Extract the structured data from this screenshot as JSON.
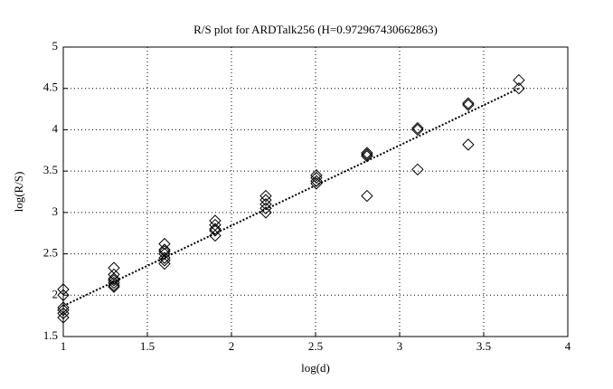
{
  "chart_data": {
    "type": "scatter",
    "title": "R/S plot for ARDTalk256 (H=0.972967430662863)",
    "x_label": "log(d)",
    "y_label": "log(R/S)",
    "xlim": [
      1,
      4
    ],
    "ylim": [
      1.5,
      5
    ],
    "xticks": [
      1,
      1.5,
      2,
      2.5,
      3,
      3.5,
      4
    ],
    "yticks": [
      1.5,
      2,
      2.5,
      3,
      3.5,
      4,
      4.5,
      5
    ],
    "grid": true,
    "series": [
      {
        "type": "scatter",
        "marker": "diamond",
        "color": "#000000",
        "x": [
          1,
          1,
          1,
          1,
          1,
          1,
          1.301,
          1.301,
          1.301,
          1.301,
          1.301,
          1.301,
          1.301,
          1.602,
          1.602,
          1.602,
          1.602,
          1.602,
          1.602,
          1.602,
          1.903,
          1.903,
          1.903,
          1.903,
          1.903,
          2.204,
          2.204,
          2.204,
          2.204,
          2.204,
          2.505,
          2.505,
          2.505,
          2.505,
          2.806,
          2.806,
          2.806,
          2.806,
          3.107,
          3.107,
          3.107,
          3.408,
          3.408,
          3.408,
          3.709,
          3.709
        ],
        "values": [
          2.07,
          2.0,
          1.85,
          1.82,
          1.78,
          1.73,
          2.33,
          2.25,
          2.2,
          2.15,
          2.12,
          2.1,
          2.18,
          2.62,
          2.55,
          2.5,
          2.45,
          2.42,
          2.38,
          2.53,
          2.9,
          2.85,
          2.8,
          2.78,
          2.72,
          3.2,
          3.15,
          3.1,
          3.05,
          3.0,
          3.45,
          3.42,
          3.38,
          3.35,
          3.72,
          3.7,
          3.68,
          3.2,
          4.02,
          4.0,
          3.52,
          4.32,
          4.3,
          3.82,
          4.6,
          4.5
        ]
      },
      {
        "type": "line",
        "dash": "dotted",
        "color": "#000000",
        "x": [
          1,
          3.709
        ],
        "values": [
          1.87,
          4.5
        ]
      }
    ]
  }
}
